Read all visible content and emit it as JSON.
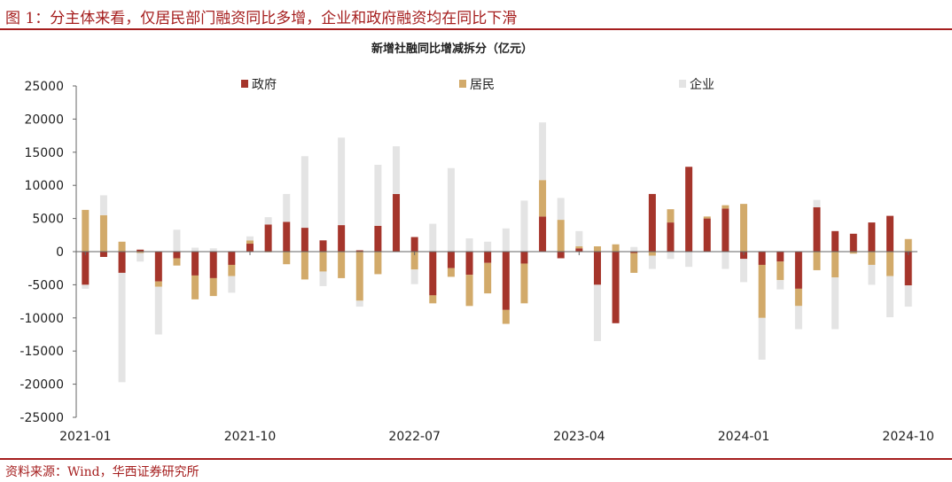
{
  "header": {
    "figure_title": "图 1：分主体来看，仅居民部门融资同比多增，企业和政府融资均在同比下滑"
  },
  "footer": {
    "source": "资料来源：Wind，华西证券研究所"
  },
  "colors": {
    "brand": "#a51e1e",
    "gov": "#a5352b",
    "res": "#d2aa6a",
    "ent": "#e4e4e4"
  },
  "chart_data": {
    "type": "bar",
    "stacked": true,
    "title": "新增社融同比增减拆分（亿元）",
    "xlabel": "",
    "ylabel": "",
    "ylim": [
      -25000,
      25000
    ],
    "yticks": [
      25000,
      20000,
      15000,
      10000,
      5000,
      0,
      -5000,
      -10000,
      -15000,
      -20000,
      -25000
    ],
    "x_tick_labels": [
      "2021-01",
      "2021-10",
      "2022-07",
      "2023-04",
      "2024-01",
      "2024-10"
    ],
    "categories": [
      "2021-01",
      "2021-02",
      "2021-03",
      "2021-04",
      "2021-05",
      "2021-06",
      "2021-07",
      "2021-08",
      "2021-09",
      "2021-10",
      "2021-11",
      "2021-12",
      "2022-01",
      "2022-02",
      "2022-03",
      "2022-04",
      "2022-05",
      "2022-06",
      "2022-07",
      "2022-08",
      "2022-09",
      "2022-10",
      "2022-11",
      "2022-12",
      "2023-01",
      "2023-02",
      "2023-03",
      "2023-04",
      "2023-05",
      "2023-06",
      "2023-07",
      "2023-08",
      "2023-09",
      "2023-10",
      "2023-11",
      "2023-12",
      "2024-01",
      "2024-02",
      "2024-03",
      "2024-04",
      "2024-05",
      "2024-06",
      "2024-07",
      "2024-08",
      "2024-09",
      "2024-10"
    ],
    "legend_position": "top",
    "grid": false,
    "series": [
      {
        "name": "政府",
        "color": "#a5352b",
        "values": [
          -5000,
          -800,
          -3200,
          300,
          -4500,
          -1000,
          -3600,
          -4000,
          -2000,
          1200,
          4100,
          4500,
          3600,
          1700,
          4000,
          200,
          3900,
          8700,
          2200,
          -6600,
          -2500,
          -3500,
          -1700,
          -8800,
          -1800,
          5300,
          -1000,
          500,
          -5000,
          -10800,
          -200,
          8700,
          4400,
          12800,
          5000,
          6500,
          -1100,
          -2000,
          -1500,
          -5600,
          6700,
          3100,
          2700,
          4400,
          5400,
          -5100
        ]
      },
      {
        "name": "居民",
        "color": "#d2aa6a",
        "values": [
          6300,
          5500,
          1500,
          -200,
          -800,
          -1100,
          -3600,
          -2700,
          -1700,
          500,
          -100,
          -1900,
          -4200,
          -3000,
          -4000,
          -7400,
          -3400,
          0,
          -2700,
          -1200,
          -1300,
          -4700,
          -4600,
          -2100,
          -6000,
          5500,
          4800,
          300,
          800,
          1100,
          -3000,
          -600,
          2000,
          0,
          300,
          500,
          7200,
          -8000,
          -2800,
          -2600,
          -2800,
          -3900,
          -300,
          -2000,
          -3700,
          1900
        ]
      },
      {
        "name": "企业",
        "color": "#e4e4e4",
        "values": [
          -600,
          3000,
          -16500,
          -1300,
          -7200,
          3300,
          600,
          500,
          -2500,
          600,
          1100,
          4200,
          10800,
          -2200,
          13200,
          -900,
          9200,
          7200,
          -2200,
          4200,
          12600,
          2000,
          1500,
          3500,
          7700,
          8700,
          3300,
          2300,
          -8500,
          0,
          700,
          -2000,
          -1100,
          -2300,
          0,
          -2600,
          -3500,
          -6300,
          -1400,
          -3500,
          1100,
          -7800,
          0,
          -3000,
          -6200,
          -3200
        ]
      }
    ]
  }
}
